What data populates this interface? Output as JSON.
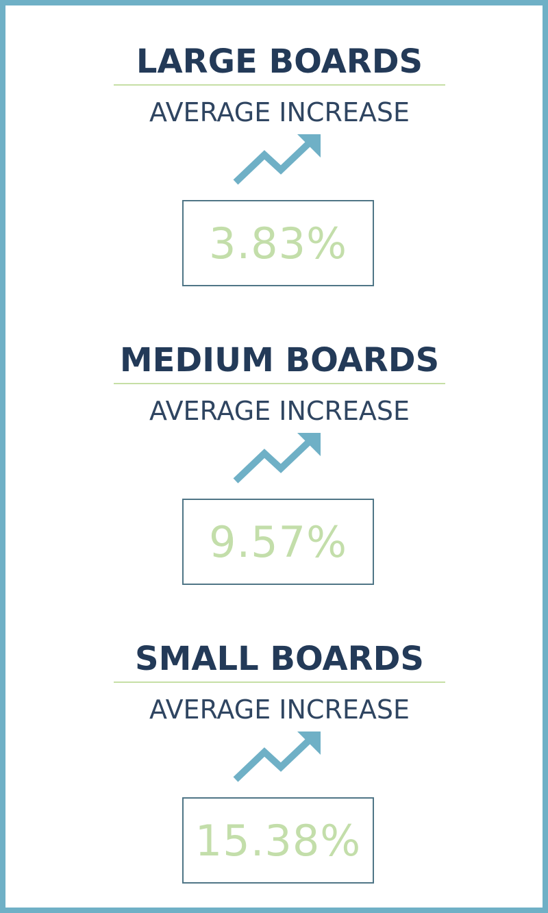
{
  "sections": [
    {
      "title": "LARGE BOARDS",
      "subtitle": "AVERAGE INCREASE",
      "value": "3.83%",
      "icon": "trend-up-arrow-icon"
    },
    {
      "title": "MEDIUM BOARDS",
      "subtitle": "AVERAGE INCREASE",
      "value": "9.57%",
      "icon": "trend-up-arrow-icon"
    },
    {
      "title": "SMALL BOARDS",
      "subtitle": "AVERAGE INCREASE",
      "value": "15.38%",
      "icon": "trend-up-arrow-icon"
    }
  ],
  "colors": {
    "frame": "#6fb0c6",
    "title": "#233a58",
    "subtitle": "#2f4561",
    "rule": "#c6dfa5",
    "value": "#c3deaa",
    "box_border": "#4f7586",
    "arrow": "#6fb0c6"
  }
}
